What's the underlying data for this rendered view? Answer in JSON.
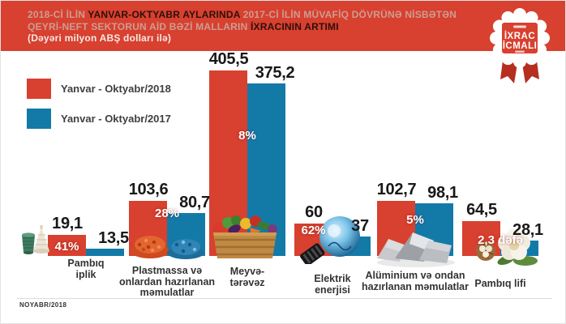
{
  "header": {
    "title_line1_a": "2018-Cİ İLİN ",
    "title_line1_b": "YANVAR-OKTYABR AYLARINDA",
    "title_line1_c": " 2017-Cİ İLİN MÜVAFİQ DÖVRÜNƏ NİSBƏTƏN",
    "title_line2_a": "QEYRİ-NEFT SEKTORUN AİD BƏZİ MALLARIN ",
    "title_line2_b": "İXRACININ ARTIMI",
    "title_line3": "(Dəyəri milyon ABŞ dolları ilə)",
    "badge_line1": "İXRAC",
    "badge_line2": "İCMALI",
    "header_color": "#d8402f"
  },
  "legend": [
    {
      "label": "Yanvar - Oktyabr/2018",
      "color": "#d8402f"
    },
    {
      "label": "Yanvar - Oktyabr/2017",
      "color": "#137aa8"
    }
  ],
  "footer": {
    "date": "NOYABR/2018"
  },
  "chart_data": {
    "type": "bar",
    "title": "2018-ci ilin yanvar-oktyabr aylarında 2017-ci ilin müvafiq dövrünə nisbətən qeyri-neft sektorun aid bəzi malların ixracının artımı",
    "unit": "milyon ABŞ dolları",
    "legend_position": "top-left",
    "grid": false,
    "categories": [
      "Pambıq iplik",
      "Plastmassa və onlardan hazırlanan məmulatlar",
      "Meyvə-tərəvəz",
      "Elektrik enerjisi",
      "Alüminium və ondan hazırlanan məmulatlar",
      "Pambıq lifi"
    ],
    "category_lines": [
      [
        "Pambıq",
        "iplik"
      ],
      [
        "Plastmassa və",
        "onlardan hazırlanan",
        "məmulatlar"
      ],
      [
        "Meyvə-",
        "tərəvəz"
      ],
      [
        "Elektrik",
        "enerjisi"
      ],
      [
        "Alüminium və ondan",
        "hazırlanan məmulatlar"
      ],
      [
        "Pambıq lifi"
      ]
    ],
    "series": [
      {
        "name": "Yanvar - Oktyabr/2018",
        "color": "#d8402f",
        "values": [
          19.1,
          103.6,
          405.5,
          60,
          102.7,
          64.5
        ]
      },
      {
        "name": "Yanvar - Oktyabr/2017",
        "color": "#137aa8",
        "values": [
          13.5,
          80.7,
          375.2,
          37,
          98.1,
          28.1
        ]
      }
    ],
    "value_labels_2018": [
      "19,1",
      "103,6",
      "405,5",
      "60",
      "102,7",
      "64,5"
    ],
    "value_labels_2017": [
      "13,5",
      "80,7",
      "375,2",
      "37",
      "98,1",
      "28,1"
    ],
    "growth_labels": [
      "41%",
      "28%",
      "8%",
      "62%",
      "5%",
      "2,3 dəfə"
    ],
    "icons": [
      "yarn-spools-icon",
      "plastic-granules-icon",
      "vegetables-crate-icon",
      "light-bulb-icon",
      "aluminium-scrap-icon",
      "cotton-flower-icon"
    ]
  }
}
